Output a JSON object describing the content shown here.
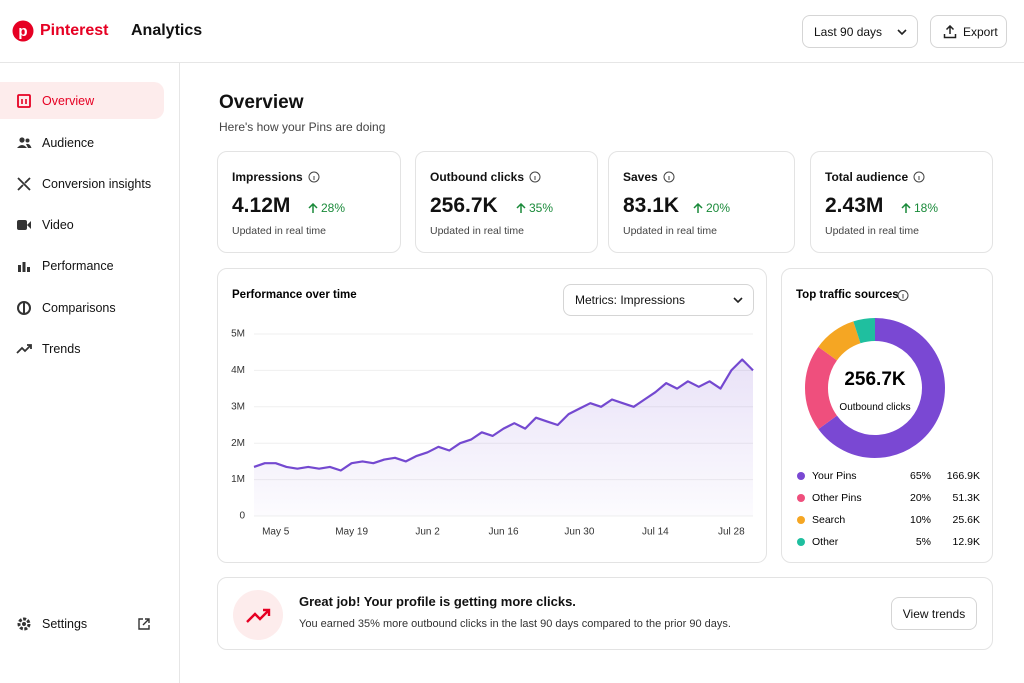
{
  "header": {
    "brand": "Pinterest",
    "title": "Analytics",
    "range_select": "Last 90 days",
    "export_button": "Export"
  },
  "sidebar": {
    "items": [
      "Overview",
      "Audience",
      "Conversion insights",
      "Video",
      "Performance",
      "Comparisons",
      "Trends"
    ],
    "settings": "Settings"
  },
  "overview": {
    "title": "Overview",
    "subtitle": "Here's how your Pins are doing"
  },
  "cards": [
    {
      "label": "Impressions",
      "value": "4.12M",
      "change": "28%",
      "note": "Updated in real time"
    },
    {
      "label": "Outbound clicks",
      "value": "256.7K",
      "change": "35%",
      "note": "Updated in real time"
    },
    {
      "label": "Saves",
      "value": "83.1K",
      "change": "20%",
      "note": "Updated in real time"
    },
    {
      "label": "Total audience",
      "value": "2.43M",
      "change": "18%",
      "note": "Updated in real time"
    }
  ],
  "chart_panel": {
    "metric_select": "Metrics: Impressions"
  },
  "chart_data": [
    {
      "type": "line",
      "title": "Performance over time",
      "color": "#7449d0",
      "grid": true,
      "categories": [
        null,
        null,
        "May 5",
        null,
        null,
        null,
        null,
        null,
        null,
        "May 19",
        null,
        null,
        null,
        null,
        null,
        null,
        "Jun 2",
        null,
        null,
        null,
        null,
        null,
        null,
        "Jun 16",
        null,
        null,
        null,
        null,
        null,
        null,
        "Jun 30",
        null,
        null,
        null,
        null,
        null,
        null,
        "Jul 14",
        null,
        null,
        null,
        null,
        null,
        null,
        "Jul 28",
        null,
        null
      ],
      "values": [
        1350000,
        1450000,
        1450000,
        1350000,
        1300000,
        1350000,
        1300000,
        1350000,
        1250000,
        1450000,
        1500000,
        1450000,
        1550000,
        1600000,
        1500000,
        1650000,
        1750000,
        1900000,
        1800000,
        2000000,
        2100000,
        2300000,
        2200000,
        2400000,
        2550000,
        2400000,
        2700000,
        2600000,
        2500000,
        2800000,
        2950000,
        3100000,
        3000000,
        3200000,
        3100000,
        3000000,
        3200000,
        3400000,
        3650000,
        3500000,
        3700000,
        3550000,
        3700000,
        3500000,
        4000000,
        4300000,
        4000000
      ],
      "ylim": [
        0,
        5000000
      ],
      "yticks": [
        0,
        {
          "value": 1000000,
          "label": "1M"
        },
        {
          "value": 2000000,
          "label": "2M"
        },
        {
          "value": 3000000,
          "label": "3M"
        },
        {
          "value": 4000000,
          "label": "4M"
        },
        {
          "value": 5000000,
          "label": "5M"
        }
      ]
    },
    {
      "type": "donut",
      "title": "Top traffic sources",
      "total": "256.7K",
      "total_label": "Outbound clicks",
      "categories": [
        "Your Pins",
        "Other Pins",
        "Search",
        "Other"
      ],
      "values": [
        65,
        20,
        10,
        5
      ],
      "value_labels": [
        "65%",
        "20%",
        "10%",
        "5%"
      ],
      "counts": [
        "166.9K",
        "51.3K",
        "25.6K",
        "12.9K"
      ],
      "colors": [
        "#7a48d3",
        "#ef4f7d",
        "#f5a623",
        "#1fbf9f"
      ]
    }
  ],
  "banner": {
    "title": "Great job! Your profile is getting more clicks.",
    "text": "You earned 35% more outbound clicks in the last 90 days compared to the prior 90 days.",
    "button": "View trends"
  }
}
